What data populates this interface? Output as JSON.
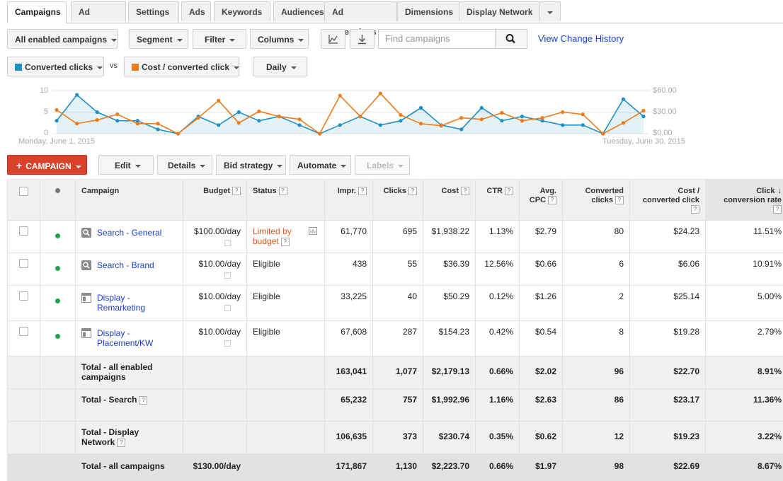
{
  "tabs": [
    "Campaigns",
    "Ad groups",
    "Settings",
    "Ads",
    "Keywords",
    "Audiences",
    "Ad extensions",
    "Dimensions",
    "Display Network"
  ],
  "toolbar": {
    "filter_view": "All enabled campaigns",
    "segment": "Segment",
    "filter": "Filter",
    "columns": "Columns",
    "search_placeholder": "Find campaigns",
    "change_history": "View Change History"
  },
  "chart_controls": {
    "metric1": "Converted clicks",
    "vs": "vs",
    "metric2": "Cost / converted click",
    "period": "Daily"
  },
  "chart_data": {
    "type": "line",
    "x_start_label": "Monday, June 1, 2015",
    "x_end_label": "Tuesday, June 30, 2015",
    "left_ticks": [
      "10",
      "5",
      "0"
    ],
    "right_ticks": [
      "$60.00",
      "$30.00",
      "$0.00"
    ],
    "ylim_left": [
      0,
      10
    ],
    "ylim_right": [
      0,
      60
    ],
    "series": [
      {
        "name": "Converted clicks",
        "color": "#1e90c8",
        "axis": "left",
        "values": [
          3,
          9,
          5,
          3,
          3,
          1,
          0,
          4,
          2,
          5,
          3,
          4,
          2,
          0,
          2,
          4,
          2,
          3,
          6,
          2,
          1,
          6,
          3,
          4,
          3,
          2,
          2,
          0,
          8,
          4
        ]
      },
      {
        "name": "Cost / converted click",
        "color": "#f07b1a",
        "axis": "right",
        "values": [
          33,
          14,
          19,
          27,
          14,
          14,
          0,
          22,
          46,
          15,
          31,
          24,
          20,
          0,
          53,
          24,
          56,
          26,
          14,
          11,
          22,
          20,
          29,
          18,
          22,
          30,
          27,
          0,
          15,
          32
        ]
      }
    ]
  },
  "actions": {
    "campaign": "CAMPAIGN",
    "edit": "Edit",
    "details": "Details",
    "bid_strategy": "Bid strategy",
    "automate": "Automate",
    "labels": "Labels"
  },
  "columns": {
    "campaign": "Campaign",
    "budget": "Budget",
    "status": "Status",
    "impr": "Impr.",
    "clicks": "Clicks",
    "cost": "Cost",
    "ctr": "CTR",
    "avg_cpc_1": "Avg.",
    "avg_cpc_2": "CPC",
    "conv_1": "Converted",
    "conv_2": "clicks",
    "cpcc_1": "Cost /",
    "cpcc_2": "converted click",
    "ccr_1": "Click",
    "ccr_2": "conversion rate"
  },
  "rows": [
    {
      "name": "Search - General",
      "name2": "",
      "type": "search",
      "budget": "$100.00/day",
      "status": "Limited by",
      "status2": "budget",
      "impr": "61,770",
      "clicks": "695",
      "cost": "$1,938.22",
      "ctr": "1.13%",
      "avg_cpc": "$2.79",
      "conv": "80",
      "cpcc": "$24.23",
      "ccr": "11.51%"
    },
    {
      "name": "Search - Brand",
      "name2": "",
      "type": "search",
      "budget": "$10.00/day",
      "status": "Eligible",
      "status2": "",
      "impr": "438",
      "clicks": "55",
      "cost": "$36.39",
      "ctr": "12.56%",
      "avg_cpc": "$0.66",
      "conv": "6",
      "cpcc": "$6.06",
      "ccr": "10.91%"
    },
    {
      "name": "Display -",
      "name2": "Remarketing",
      "type": "display",
      "budget": "$10.00/day",
      "status": "Eligible",
      "status2": "",
      "impr": "33,225",
      "clicks": "40",
      "cost": "$50.29",
      "ctr": "0.12%",
      "avg_cpc": "$1.26",
      "conv": "2",
      "cpcc": "$25.14",
      "ccr": "5.00%"
    },
    {
      "name": "Display -",
      "name2": "Placement/KW",
      "type": "display",
      "budget": "$10.00/day",
      "status": "Eligible",
      "status2": "",
      "impr": "67,608",
      "clicks": "287",
      "cost": "$154.23",
      "ctr": "0.42%",
      "avg_cpc": "$0.54",
      "conv": "8",
      "cpcc": "$19.28",
      "ccr": "2.79%"
    }
  ],
  "totals": [
    {
      "label": "Total - all enabled",
      "label2": "campaigns",
      "budget": "",
      "impr": "163,041",
      "clicks": "1,077",
      "cost": "$2,179.13",
      "ctr": "0.66%",
      "avg_cpc": "$2.02",
      "conv": "96",
      "cpcc": "$22.70",
      "ccr": "8.91%"
    },
    {
      "label": "Total - Search",
      "label2": "",
      "budget": "",
      "impr": "65,232",
      "clicks": "757",
      "cost": "$1,992.96",
      "ctr": "1.16%",
      "avg_cpc": "$2.63",
      "conv": "86",
      "cpcc": "$23.17",
      "ccr": "11.36%"
    },
    {
      "label": "Total - Display",
      "label2": "Network",
      "budget": "",
      "impr": "106,635",
      "clicks": "373",
      "cost": "$230.74",
      "ctr": "0.35%",
      "avg_cpc": "$0.62",
      "conv": "12",
      "cpcc": "$19.23",
      "ccr": "3.22%"
    }
  ],
  "grand_total": {
    "label": "Total - all campaigns",
    "budget": "$130.00/day",
    "impr": "171,867",
    "clicks": "1,130",
    "cost": "$2,223.70",
    "ctr": "0.66%",
    "avg_cpc": "$1.97",
    "conv": "98",
    "cpcc": "$22.69",
    "ccr": "8.67%"
  },
  "colors": {
    "accent_red": "#d9412b",
    "link_blue": "#1a3fcc",
    "series_blue": "#1e90c8",
    "series_orange": "#f07b1a",
    "status_warning": "#e0571c",
    "enabled_green": "#1ea44b"
  }
}
